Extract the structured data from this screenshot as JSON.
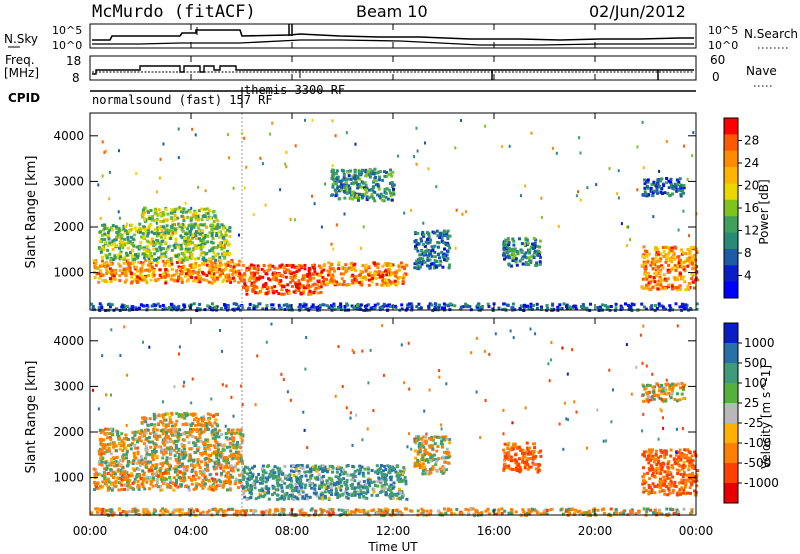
{
  "header": {
    "station": "McMurdo (fitACF)",
    "beam": "Beam 10",
    "date": "02/Jun/2012"
  },
  "strip_panels": {
    "nsky_label": "N.Sky",
    "nsky_ticks": [
      "10^5",
      "10^0"
    ],
    "nsearch_label": "N.Search",
    "nsearch_ticks": [
      "10^5",
      "10^0"
    ],
    "freq_label_1": "Freq.",
    "freq_label_2": "[MHz]",
    "freq_ticks": [
      "18",
      "8"
    ],
    "nave_label": "Nave",
    "nave_ticks": [
      "60",
      "0"
    ],
    "cpid_label": "CPID",
    "cpid_entries": [
      "normalsound (fast) 157 RF",
      "themis 3300 RF"
    ]
  },
  "chart_data": [
    {
      "type": "heatmap",
      "name": "Power",
      "title": "",
      "xlabel": "",
      "ylabel": "Slant Range [km]",
      "xlim": [
        "00:00",
        "24:00"
      ],
      "ylim": [
        180,
        4500
      ],
      "yticks": [
        "1000",
        "2000",
        "3000",
        "4000"
      ],
      "colorbar": {
        "label": "Power [dB]",
        "ticks": [
          "28",
          "24",
          "20",
          "16",
          "12",
          "8",
          "4"
        ],
        "colors": [
          "#ff0000",
          "#ff5a00",
          "#ff8c00",
          "#ffb400",
          "#e8d800",
          "#7fc31c",
          "#3fa05a",
          "#2a8a78",
          "#1d5aa8",
          "#0a1ec8",
          "#0000ff"
        ]
      },
      "regions": [
        {
          "t": [
            0.1,
            6.0
          ],
          "r": [
            800,
            1300
          ],
          "value": 24
        },
        {
          "t": [
            6.0,
            9.2
          ],
          "r": [
            550,
            1200
          ],
          "value": 28
        },
        {
          "t": [
            9.2,
            12.5
          ],
          "r": [
            750,
            1250
          ],
          "value": 24
        },
        {
          "t": [
            0.3,
            5.5
          ],
          "r": [
            1300,
            2100
          ],
          "value": 14
        },
        {
          "t": [
            2.0,
            5.0
          ],
          "r": [
            2150,
            2450
          ],
          "value": 16
        },
        {
          "t": [
            12.8,
            14.2
          ],
          "r": [
            1100,
            1950
          ],
          "value": 7
        },
        {
          "t": [
            16.3,
            17.8
          ],
          "r": [
            1150,
            1800
          ],
          "value": 9
        },
        {
          "t": [
            21.8,
            24.0
          ],
          "r": [
            650,
            1600
          ],
          "value": 24
        },
        {
          "t": [
            21.8,
            23.5
          ],
          "r": [
            2700,
            3100
          ],
          "value": 6
        },
        {
          "t": [
            9.5,
            12.0
          ],
          "r": [
            2600,
            3300
          ],
          "value": 10
        },
        {
          "t": [
            0.0,
            24.0
          ],
          "r": [
            200,
            350
          ],
          "value": 5
        }
      ]
    },
    {
      "type": "heatmap",
      "name": "Velocity",
      "title": "",
      "xlabel": "Time UT",
      "ylabel": "Slant Range [km]",
      "xlim": [
        "00:00",
        "24:00"
      ],
      "ylim": [
        180,
        4500
      ],
      "xticks": [
        "00:00",
        "04:00",
        "08:00",
        "12:00",
        "16:00",
        "20:00",
        "00:00"
      ],
      "yticks": [
        "1000",
        "2000",
        "3000",
        "4000"
      ],
      "colorbar": {
        "label": "Velocity [m s^-1]",
        "ticks": [
          "1000",
          "500",
          "100",
          "25",
          "-25",
          "-100",
          "-500",
          "-1000"
        ],
        "colors": [
          "#0a1ec8",
          "#2a70a8",
          "#3f9a78",
          "#55b040",
          "#b8b8b8",
          "#ffb000",
          "#ff8000",
          "#ff4000",
          "#e80000"
        ]
      },
      "regions": [
        {
          "t": [
            0.1,
            6.0
          ],
          "r": [
            750,
            1300
          ],
          "value": -100
        },
        {
          "t": [
            6.0,
            12.5
          ],
          "r": [
            550,
            1300
          ],
          "value": 200
        },
        {
          "t": [
            0.3,
            6.0
          ],
          "r": [
            1300,
            2100
          ],
          "value": -50
        },
        {
          "t": [
            2.0,
            5.0
          ],
          "r": [
            2150,
            2450
          ],
          "value": -60
        },
        {
          "t": [
            12.8,
            14.2
          ],
          "r": [
            1100,
            1950
          ],
          "value": -40
        },
        {
          "t": [
            16.3,
            17.8
          ],
          "r": [
            1150,
            1800
          ],
          "value": -300
        },
        {
          "t": [
            21.8,
            24.0
          ],
          "r": [
            650,
            1650
          ],
          "value": -300
        },
        {
          "t": [
            21.8,
            23.5
          ],
          "r": [
            2700,
            3100
          ],
          "value": -80
        },
        {
          "t": [
            0.0,
            24.0
          ],
          "r": [
            200,
            350
          ],
          "value": -100
        }
      ]
    }
  ]
}
